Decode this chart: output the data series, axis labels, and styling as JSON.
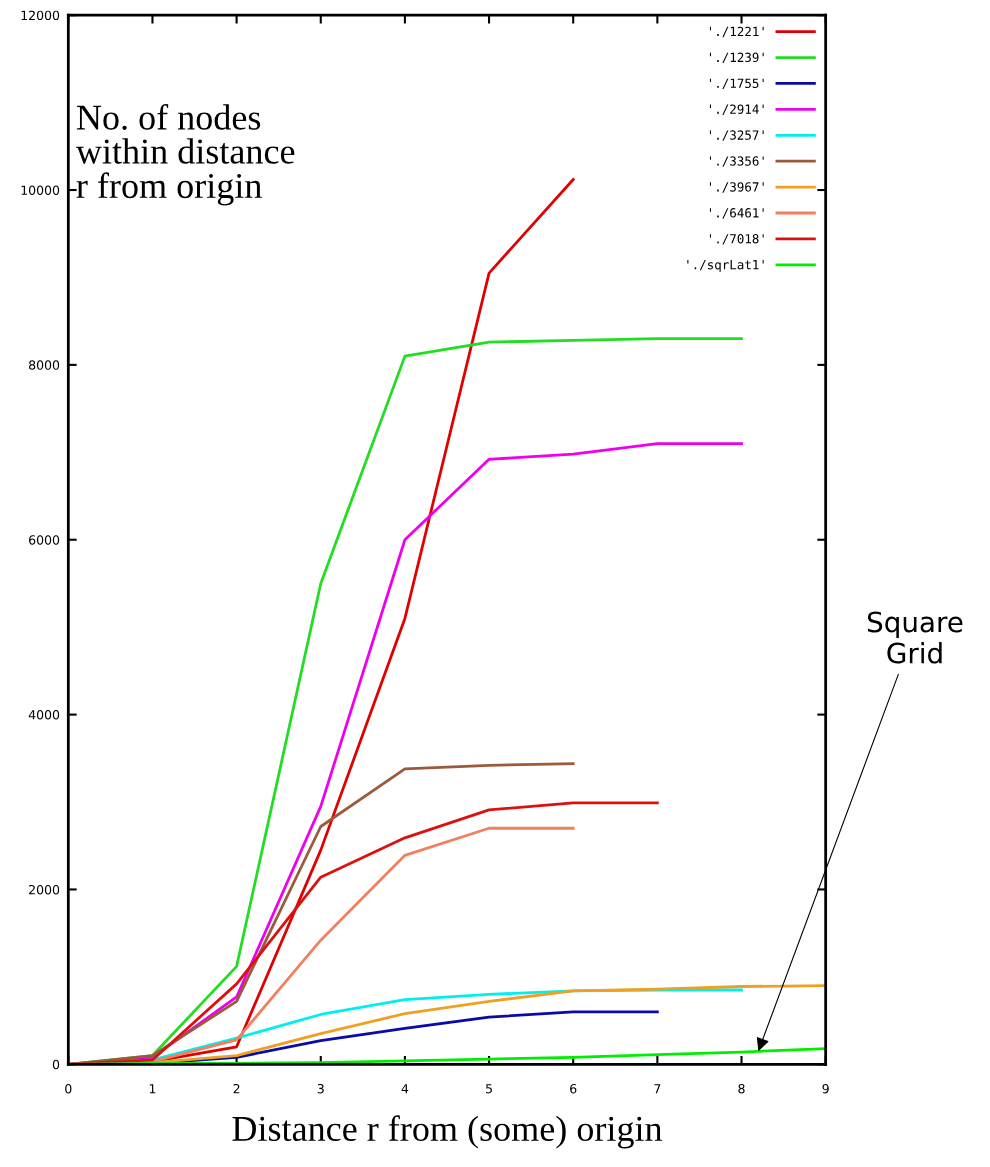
{
  "chart_data": {
    "type": "line",
    "xlabel": "Distance r from (some) origin",
    "ylabel": "No. of nodes\nwithin distance\nr from origin",
    "x": [
      0,
      1,
      2,
      3,
      4,
      5,
      6,
      7,
      8,
      9
    ],
    "xlim": [
      0,
      9
    ],
    "xticks": [
      0,
      1,
      2,
      3,
      4,
      5,
      6,
      7,
      8,
      9
    ],
    "ylim": [
      0,
      12000
    ],
    "yticks": [
      0,
      2000,
      4000,
      6000,
      8000,
      10000,
      12000
    ],
    "grid": false,
    "legend": "top right",
    "marker": "none",
    "line_style": "solid",
    "series": [
      {
        "name": "'./1221'",
        "color": "#e00000",
        "values": [
          0,
          30,
          200,
          2450,
          5100,
          9050,
          10120,
          null,
          null,
          null
        ]
      },
      {
        "name": "'./1239'",
        "color": "#22dd22",
        "values": [
          0,
          100,
          1120,
          5500,
          8100,
          8260,
          8280,
          8300,
          8300,
          null
        ]
      },
      {
        "name": "'./1755'",
        "color": "#0a0aa8",
        "values": [
          0,
          10,
          80,
          270,
          410,
          540,
          600,
          600,
          null,
          null
        ]
      },
      {
        "name": "'./2914'",
        "color": "#ee00ee",
        "values": [
          0,
          80,
          770,
          2950,
          6000,
          6920,
          6980,
          7100,
          7100,
          null
        ]
      },
      {
        "name": "'./3257'",
        "color": "#00eeee",
        "values": [
          0,
          50,
          300,
          570,
          740,
          800,
          840,
          850,
          850,
          null
        ]
      },
      {
        "name": "'./3356'",
        "color": "#9c5a3c",
        "values": [
          0,
          100,
          720,
          2720,
          3380,
          3420,
          3440,
          null,
          null,
          null
        ]
      },
      {
        "name": "'./3967'",
        "color": "#f0a020",
        "values": [
          0,
          20,
          100,
          350,
          580,
          720,
          840,
          860,
          890,
          900
        ]
      },
      {
        "name": "'./6461'",
        "color": "#f08060",
        "values": [
          0,
          30,
          280,
          1420,
          2390,
          2700,
          2700,
          null,
          null,
          null
        ]
      },
      {
        "name": "'./7018'",
        "color": "#dd1010",
        "values": [
          0,
          50,
          920,
          2140,
          2590,
          2910,
          2990,
          2990,
          null,
          null
        ]
      },
      {
        "name": "'./sqrLat1'",
        "color": "#00ee00",
        "values": [
          0,
          10,
          10,
          20,
          40,
          60,
          80,
          110,
          140,
          180
        ]
      }
    ],
    "annotations": [
      {
        "text": "Square\nGrid",
        "x": 8.2,
        "y": 150
      }
    ]
  }
}
